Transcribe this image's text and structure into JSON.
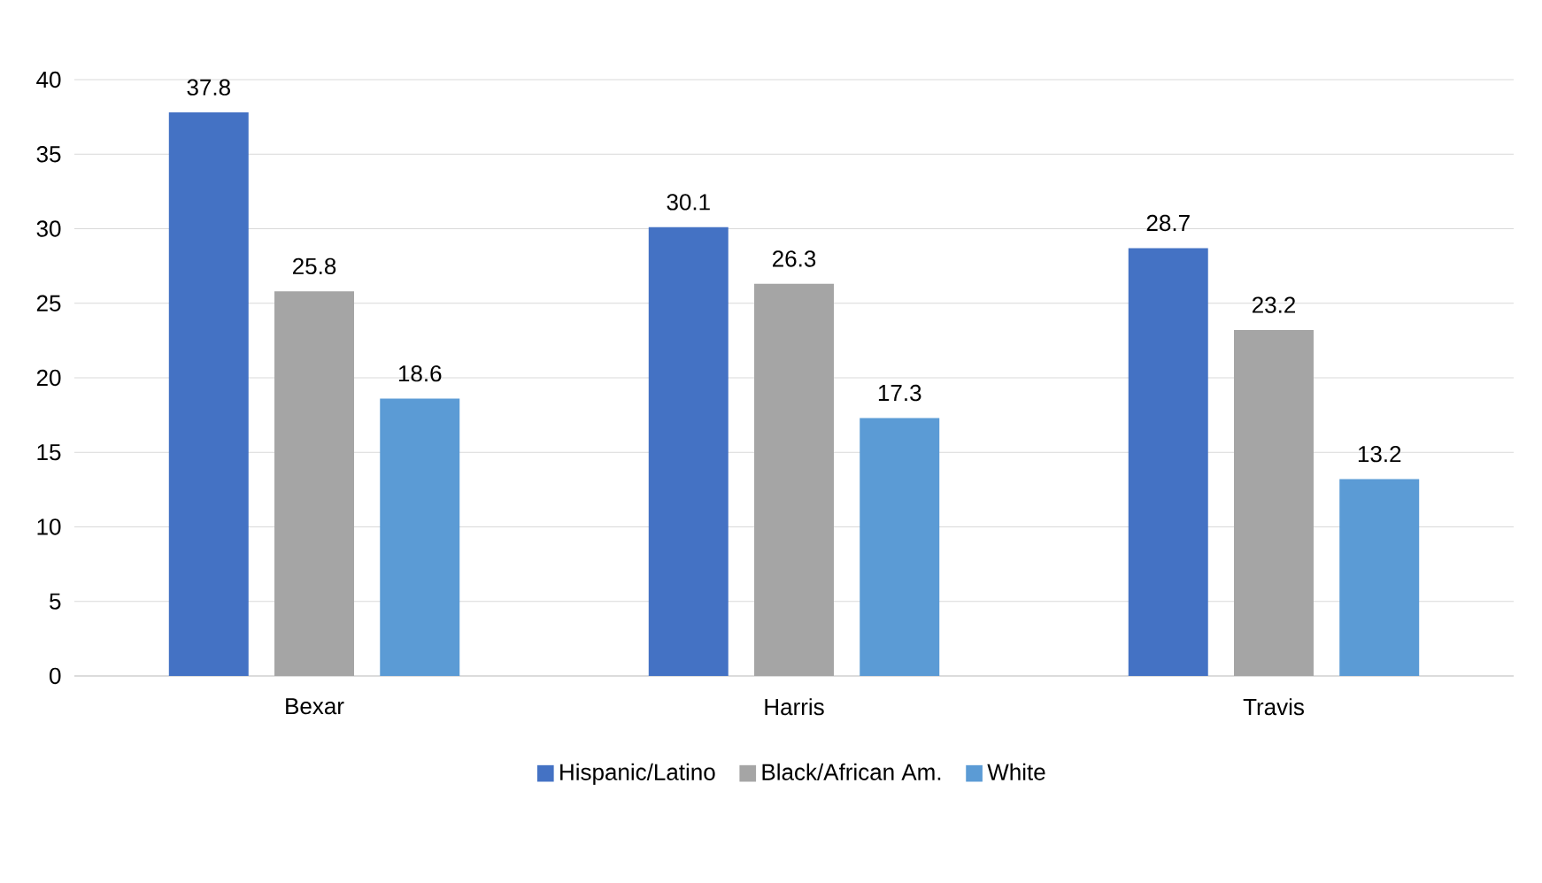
{
  "chart_data": {
    "type": "bar",
    "categories": [
      "Bexar",
      "Harris",
      "Travis"
    ],
    "series": [
      {
        "name": "Hispanic/Latino",
        "color": "#4472c4",
        "values": [
          37.8,
          30.1,
          28.7
        ]
      },
      {
        "name": "Black/African Am.",
        "color": "#a5a5a5",
        "values": [
          25.8,
          26.3,
          23.2
        ]
      },
      {
        "name": "White",
        "color": "#5b9bd5",
        "values": [
          18.6,
          17.3,
          13.2
        ]
      }
    ],
    "ylim": [
      0,
      40
    ],
    "yticks": [
      0,
      5,
      10,
      15,
      20,
      25,
      30,
      35,
      40
    ],
    "grid": "y",
    "legend": "bottom",
    "data_labels": true
  }
}
